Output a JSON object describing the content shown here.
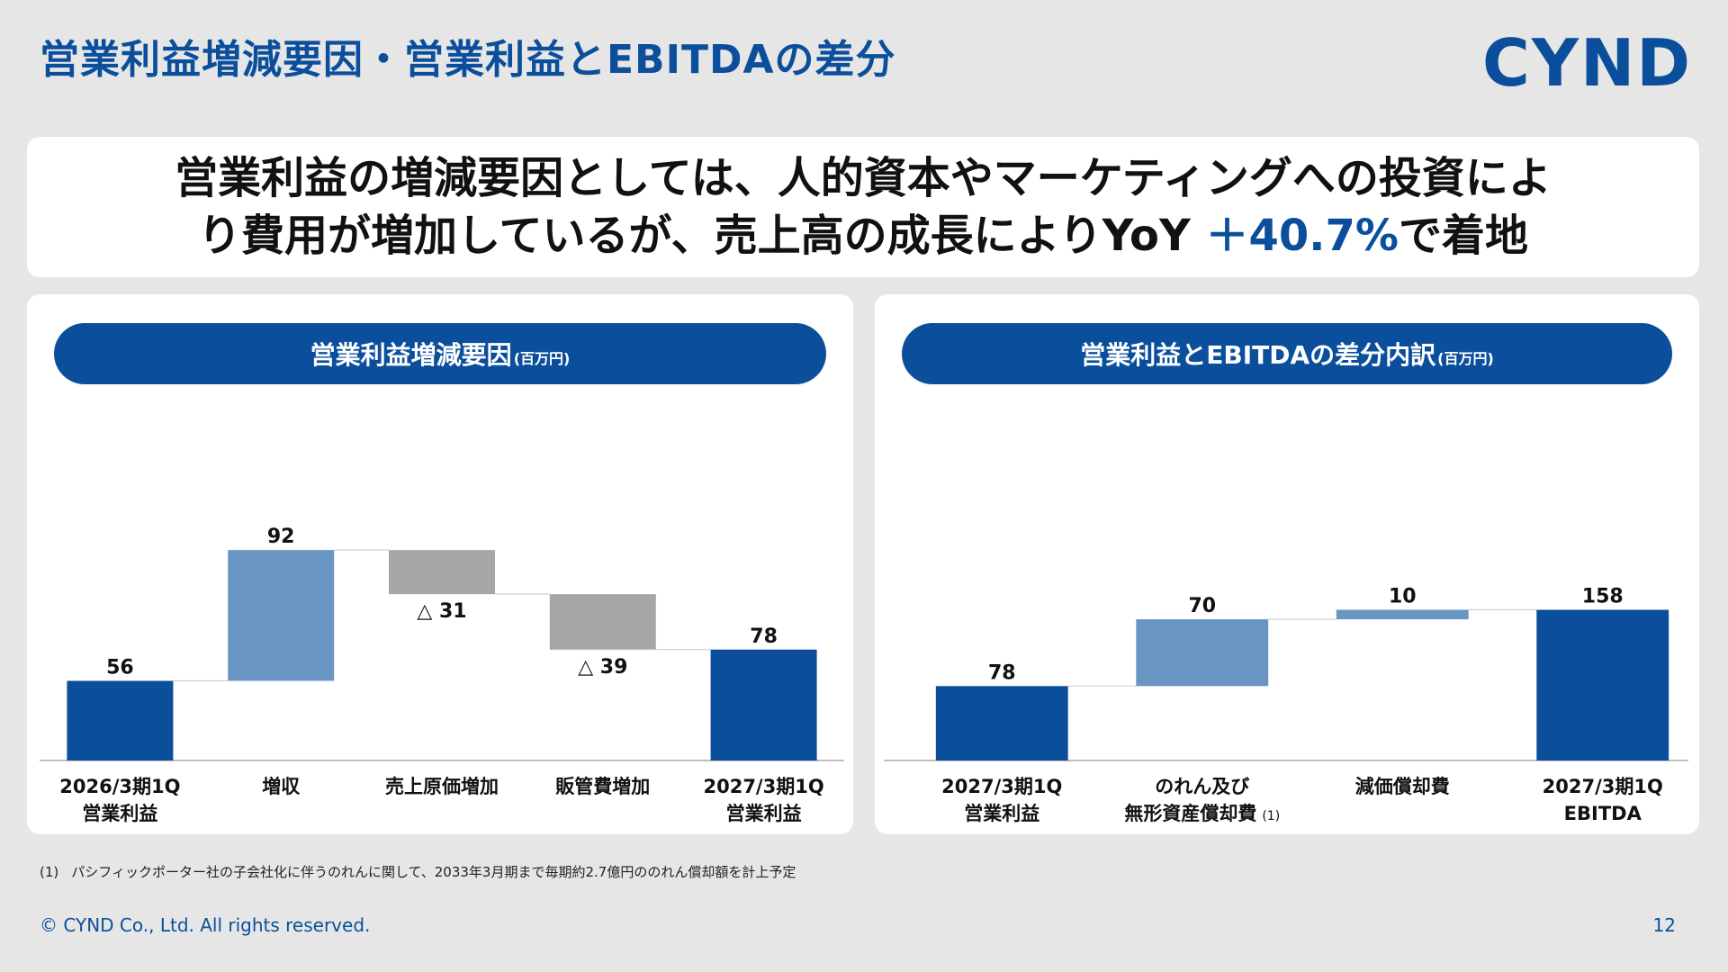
{
  "page": {
    "title": "営業利益増減要因・営業利益とEBITDAの差分",
    "logo": "CYND",
    "headline_line1": "営業利益の増減要因としては、人的資本やマーケティングへの投資によ",
    "headline_line2_prefix": "り費用が増加しているが、売上高の成長によりYoY",
    "headline_accent": "＋40.7%",
    "headline_line2_suffix": "で着地",
    "footnote_marker": "(1)",
    "footnote": "パシフィックポーター社の子会社化に伴うのれんに関して、2033年3月期まで毎期約2.7億円ののれん償却額を計上予定",
    "copyright": "© CYND Co., Ltd. All rights reserved.",
    "page_number": "12"
  },
  "left_panel": {
    "title": "営業利益増減要因",
    "unit": "(百万円)"
  },
  "right_panel": {
    "title": "営業利益とEBITDAの差分内訳",
    "unit": "(百万円)"
  },
  "colors": {
    "total": "#0b4f9c",
    "increase": "#6a96c4",
    "decrease": "#a6a6a6",
    "accent": "#0b4f9c"
  },
  "chart_data": [
    {
      "type": "bar",
      "subtype": "waterfall",
      "title": "営業利益増減要因",
      "unit": "(百万円)",
      "ylim": [
        0,
        100
      ],
      "bars": [
        {
          "category": [
            "2026/3期1Q",
            "営業利益"
          ],
          "start": 0,
          "end": 56,
          "label": "56",
          "kind": "total"
        },
        {
          "category": [
            "増収"
          ],
          "start": 56,
          "end": 148,
          "label": "92",
          "kind": "increase"
        },
        {
          "category": [
            "売上原価増加"
          ],
          "start": 148,
          "end": 117,
          "label": "△ 31",
          "kind": "decrease"
        },
        {
          "category": [
            "販管費増加"
          ],
          "start": 117,
          "end": 78,
          "label": "△ 39",
          "kind": "decrease"
        },
        {
          "category": [
            "2027/3期1Q",
            "営業利益"
          ],
          "start": 0,
          "end": 78,
          "label": "78",
          "kind": "total"
        }
      ]
    },
    {
      "type": "bar",
      "subtype": "waterfall",
      "title": "営業利益とEBITDAの差分内訳",
      "unit": "(百万円)",
      "bars": [
        {
          "category": [
            "2027/3期1Q",
            "営業利益"
          ],
          "start": 0,
          "end": 78,
          "label": "78",
          "kind": "total"
        },
        {
          "category": [
            "のれん及び",
            "無形資産償却費"
          ],
          "note": "(1)",
          "start": 78,
          "end": 148,
          "label": "70",
          "kind": "increase"
        },
        {
          "category": [
            "減価償却費"
          ],
          "start": 148,
          "end": 158,
          "label": "10",
          "kind": "increase"
        },
        {
          "category": [
            "2027/3期1Q",
            "EBITDA"
          ],
          "start": 0,
          "end": 158,
          "label": "158",
          "kind": "total"
        }
      ]
    }
  ]
}
